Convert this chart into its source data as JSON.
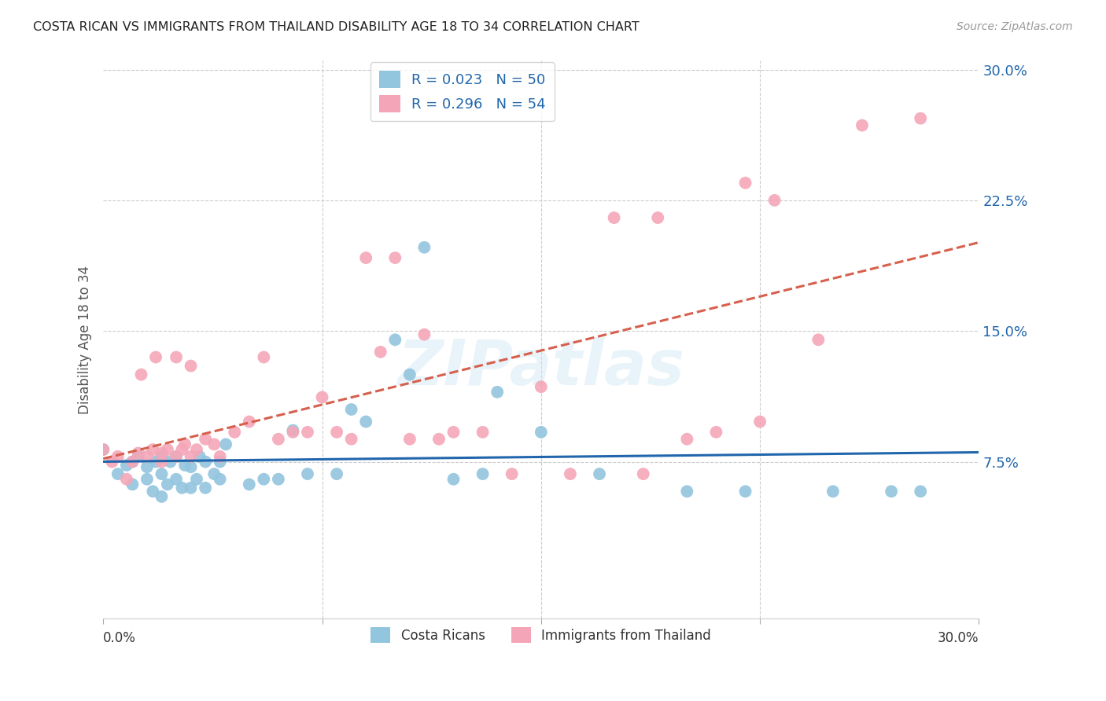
{
  "title": "COSTA RICAN VS IMMIGRANTS FROM THAILAND DISABILITY AGE 18 TO 34 CORRELATION CHART",
  "source": "Source: ZipAtlas.com",
  "ylabel": "Disability Age 18 to 34",
  "xmin": 0.0,
  "xmax": 0.3,
  "ymin": 0.0,
  "ymax": 0.3,
  "yticks": [
    0.075,
    0.15,
    0.225,
    0.3
  ],
  "ytick_labels": [
    "7.5%",
    "15.0%",
    "22.5%",
    "30.0%"
  ],
  "xtick_positions": [
    0.0,
    0.075,
    0.15,
    0.225,
    0.3
  ],
  "blue_R": 0.023,
  "blue_N": 50,
  "pink_R": 0.296,
  "pink_N": 54,
  "blue_color": "#92c5de",
  "pink_color": "#f4a6b8",
  "trend_blue_color": "#2166ac",
  "trend_pink_color": "#d6604d",
  "legend_text_color": "#2166ac",
  "watermark": "ZIPatlas",
  "blue_x": [
    0.0,
    0.005,
    0.008,
    0.01,
    0.01,
    0.012,
    0.015,
    0.015,
    0.017,
    0.018,
    0.02,
    0.02,
    0.02,
    0.022,
    0.023,
    0.025,
    0.025,
    0.027,
    0.028,
    0.03,
    0.03,
    0.032,
    0.033,
    0.035,
    0.035,
    0.038,
    0.04,
    0.04,
    0.042,
    0.05,
    0.055,
    0.06,
    0.065,
    0.07,
    0.08,
    0.085,
    0.09,
    0.1,
    0.105,
    0.11,
    0.12,
    0.13,
    0.135,
    0.15,
    0.17,
    0.2,
    0.22,
    0.25,
    0.27,
    0.28
  ],
  "blue_y": [
    0.082,
    0.068,
    0.073,
    0.062,
    0.075,
    0.078,
    0.065,
    0.072,
    0.058,
    0.075,
    0.055,
    0.068,
    0.078,
    0.062,
    0.075,
    0.065,
    0.078,
    0.06,
    0.073,
    0.06,
    0.072,
    0.065,
    0.078,
    0.06,
    0.075,
    0.068,
    0.065,
    0.075,
    0.085,
    0.062,
    0.065,
    0.065,
    0.093,
    0.068,
    0.068,
    0.105,
    0.098,
    0.145,
    0.125,
    0.198,
    0.065,
    0.068,
    0.115,
    0.092,
    0.068,
    0.058,
    0.058,
    0.058,
    0.058,
    0.058
  ],
  "pink_x": [
    0.0,
    0.003,
    0.005,
    0.008,
    0.01,
    0.012,
    0.013,
    0.015,
    0.017,
    0.018,
    0.02,
    0.02,
    0.022,
    0.025,
    0.025,
    0.027,
    0.028,
    0.03,
    0.03,
    0.032,
    0.035,
    0.038,
    0.04,
    0.045,
    0.05,
    0.055,
    0.06,
    0.065,
    0.07,
    0.075,
    0.08,
    0.085,
    0.09,
    0.095,
    0.1,
    0.105,
    0.11,
    0.115,
    0.12,
    0.13,
    0.14,
    0.15,
    0.16,
    0.175,
    0.185,
    0.19,
    0.2,
    0.21,
    0.22,
    0.225,
    0.23,
    0.245,
    0.26,
    0.28
  ],
  "pink_y": [
    0.082,
    0.075,
    0.078,
    0.065,
    0.075,
    0.08,
    0.125,
    0.078,
    0.082,
    0.135,
    0.075,
    0.08,
    0.082,
    0.078,
    0.135,
    0.082,
    0.085,
    0.078,
    0.13,
    0.082,
    0.088,
    0.085,
    0.078,
    0.092,
    0.098,
    0.135,
    0.088,
    0.092,
    0.092,
    0.112,
    0.092,
    0.088,
    0.192,
    0.138,
    0.192,
    0.088,
    0.148,
    0.088,
    0.092,
    0.092,
    0.068,
    0.118,
    0.068,
    0.215,
    0.068,
    0.215,
    0.088,
    0.092,
    0.235,
    0.098,
    0.225,
    0.145,
    0.268,
    0.272
  ]
}
